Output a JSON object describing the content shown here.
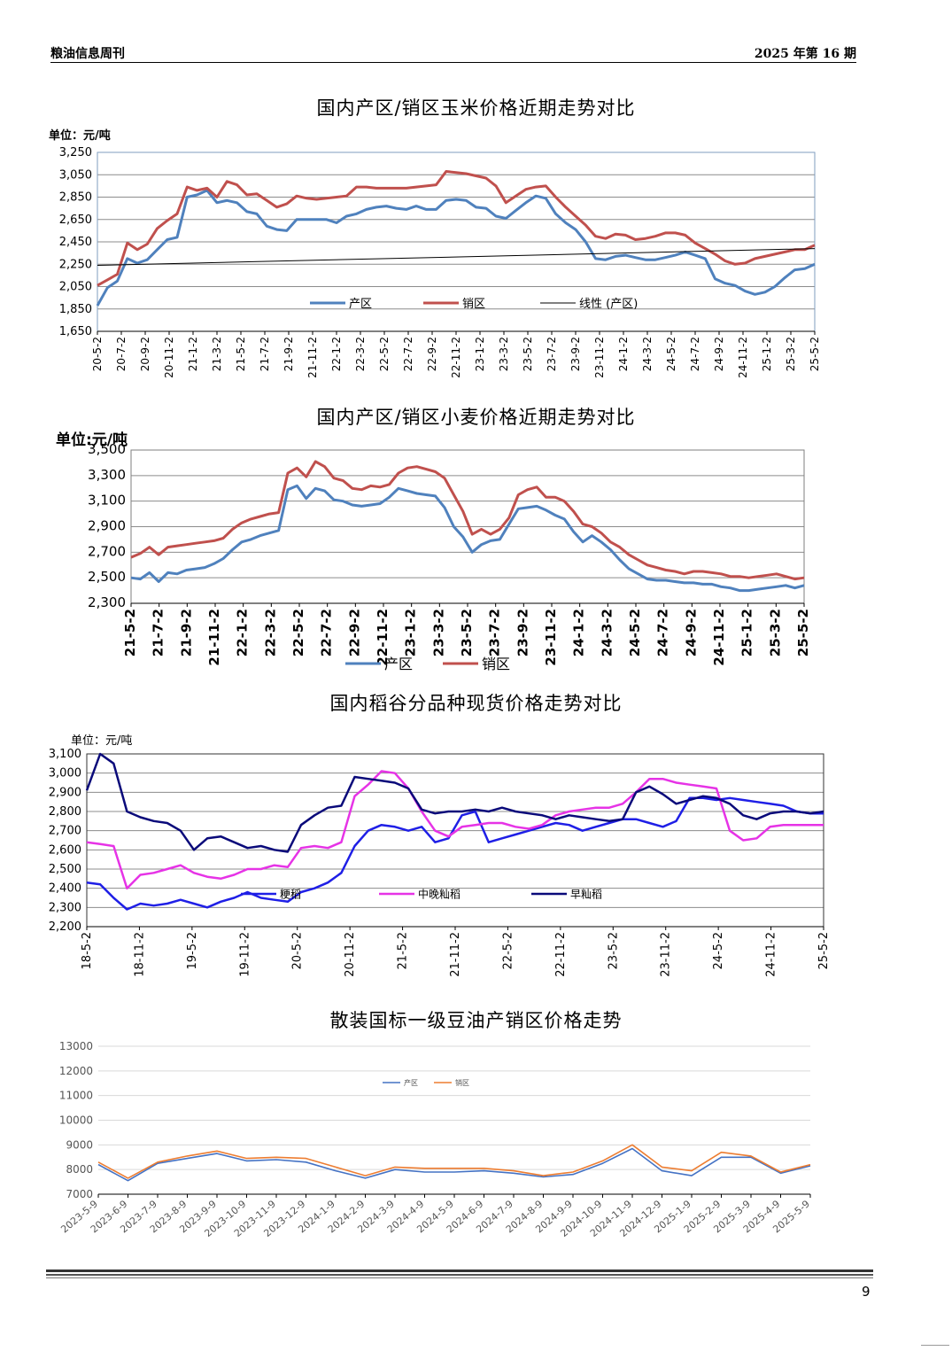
{
  "header": {
    "left": "粮油信息周刊",
    "right": "2025 年第 16 期"
  },
  "page_number": "9",
  "chart_data": [
    {
      "type": "line",
      "title": "国内产区/销区玉米价格近期走势对比",
      "unit_label": "单位：元/吨",
      "y_ticks": [
        "1,650",
        "1,850",
        "2,050",
        "2,250",
        "2,450",
        "2,650",
        "2,850",
        "3,050",
        "3,250"
      ],
      "ylim": [
        1650,
        3250
      ],
      "x_labels": [
        "20-5-2",
        "20-7-2",
        "20-9-2",
        "20-11-2",
        "21-1-2",
        "21-3-2",
        "21-5-2",
        "21-7-2",
        "21-9-2",
        "21-11-2",
        "22-1-2",
        "22-3-2",
        "22-5-2",
        "22-7-2",
        "22-9-2",
        "22-11-2",
        "23-1-2",
        "23-3-2",
        "23-5-2",
        "23-7-2",
        "23-9-2",
        "23-11-2",
        "24-1-2",
        "24-3-2",
        "24-5-2",
        "24-7-2",
        "24-9-2",
        "24-11-2",
        "25-1-2",
        "25-3-2",
        "25-5-2"
      ],
      "grid": true,
      "legend_position": "bottom-inside",
      "series": [
        {
          "name": "产区",
          "color": "#4f81bd",
          "values": [
            1880,
            2040,
            2100,
            2300,
            2260,
            2290,
            2380,
            2470,
            2490,
            2850,
            2870,
            2910,
            2800,
            2820,
            2800,
            2720,
            2700,
            2590,
            2560,
            2550,
            2650,
            2650,
            2650,
            2650,
            2620,
            2680,
            2700,
            2740,
            2760,
            2770,
            2750,
            2740,
            2770,
            2740,
            2740,
            2820,
            2830,
            2820,
            2760,
            2750,
            2680,
            2660,
            2730,
            2800,
            2860,
            2840,
            2700,
            2620,
            2560,
            2450,
            2300,
            2290,
            2320,
            2330,
            2310,
            2290,
            2290,
            2310,
            2330,
            2360,
            2330,
            2300,
            2120,
            2080,
            2060,
            2010,
            1980,
            2000,
            2050,
            2130,
            2200,
            2210,
            2250
          ]
        },
        {
          "name": "销区",
          "color": "#c0504d",
          "values": [
            2060,
            2110,
            2160,
            2440,
            2380,
            2430,
            2570,
            2640,
            2700,
            2940,
            2910,
            2930,
            2850,
            2990,
            2960,
            2870,
            2880,
            2820,
            2760,
            2790,
            2860,
            2840,
            2830,
            2840,
            2850,
            2860,
            2940,
            2940,
            2930,
            2930,
            2930,
            2930,
            2940,
            2950,
            2960,
            3080,
            3070,
            3060,
            3040,
            3020,
            2950,
            2800,
            2860,
            2920,
            2940,
            2950,
            2850,
            2760,
            2680,
            2600,
            2500,
            2480,
            2520,
            2510,
            2470,
            2480,
            2500,
            2530,
            2530,
            2510,
            2440,
            2390,
            2340,
            2280,
            2250,
            2260,
            2300,
            2320,
            2340,
            2360,
            2380,
            2380,
            2420
          ]
        },
        {
          "name": "线性 (产区)",
          "color": "#000000",
          "values": [
            2240,
            2390
          ]
        }
      ]
    },
    {
      "type": "line",
      "title": "国内产区/销区小麦价格近期走势对比",
      "unit_label": "单位:元/吨",
      "y_ticks": [
        "2,300",
        "2,500",
        "2,700",
        "2,900",
        "3,100",
        "3,300",
        "3,500"
      ],
      "ylim": [
        2300,
        3500
      ],
      "x_labels": [
        "21-5-2",
        "21-7-2",
        "21-9-2",
        "21-11-2",
        "22-1-2",
        "22-3-2",
        "22-5-2",
        "22-7-2",
        "22-9-2",
        "22-11-2",
        "23-1-2",
        "23-3-2",
        "23-5-2",
        "23-7-2",
        "23-9-2",
        "23-11-2",
        "24-1-2",
        "24-3-2",
        "24-5-2",
        "24-7-2",
        "24-9-2",
        "24-11-2",
        "25-1-2",
        "25-3-2",
        "25-5-2"
      ],
      "grid": true,
      "legend_position": "bottom",
      "series": [
        {
          "name": "产区",
          "color": "#4f81bd",
          "values": [
            2500,
            2490,
            2540,
            2470,
            2540,
            2530,
            2560,
            2570,
            2580,
            2610,
            2650,
            2720,
            2780,
            2800,
            2830,
            2850,
            2870,
            3190,
            3220,
            3120,
            3200,
            3180,
            3110,
            3100,
            3070,
            3060,
            3070,
            3080,
            3130,
            3200,
            3180,
            3160,
            3150,
            3140,
            3050,
            2900,
            2820,
            2700,
            2760,
            2790,
            2800,
            2920,
            3040,
            3050,
            3060,
            3030,
            2990,
            2960,
            2860,
            2780,
            2830,
            2780,
            2720,
            2640,
            2570,
            2530,
            2490,
            2480,
            2480,
            2470,
            2460,
            2460,
            2450,
            2450,
            2430,
            2420,
            2400,
            2400,
            2410,
            2420,
            2430,
            2440,
            2420,
            2440
          ]
        },
        {
          "name": "销区",
          "color": "#c0504d",
          "values": [
            2660,
            2690,
            2740,
            2680,
            2740,
            2750,
            2760,
            2770,
            2780,
            2790,
            2810,
            2880,
            2930,
            2960,
            2980,
            3000,
            3010,
            3320,
            3360,
            3290,
            3410,
            3370,
            3280,
            3260,
            3200,
            3190,
            3220,
            3210,
            3230,
            3320,
            3360,
            3370,
            3350,
            3330,
            3280,
            3150,
            3020,
            2840,
            2880,
            2840,
            2880,
            2970,
            3150,
            3190,
            3210,
            3130,
            3130,
            3100,
            3020,
            2920,
            2900,
            2850,
            2780,
            2740,
            2680,
            2640,
            2600,
            2580,
            2560,
            2550,
            2530,
            2550,
            2550,
            2540,
            2530,
            2510,
            2510,
            2500,
            2510,
            2520,
            2530,
            2510,
            2490,
            2500
          ]
        }
      ]
    },
    {
      "type": "line",
      "title": "国内稻谷分品种现货价格走势对比",
      "unit_label": "单位：元/吨",
      "y_ticks": [
        "2,200",
        "2,300",
        "2,400",
        "2,500",
        "2,600",
        "2,700",
        "2,800",
        "2,900",
        "3,000",
        "3,100"
      ],
      "ylim": [
        2200,
        3100
      ],
      "x_labels": [
        "18-5-2",
        "18-11-2",
        "19-5-2",
        "19-11-2",
        "20-5-2",
        "20-11-2",
        "21-5-2",
        "21-11-2",
        "22-5-2",
        "22-11-2",
        "23-5-2",
        "23-11-2",
        "24-5-2",
        "24-11-2",
        "25-5-2"
      ],
      "grid": true,
      "legend_position": "bottom-inside",
      "series": [
        {
          "name": "粳稻",
          "color": "#1f1fe6",
          "values": [
            2430,
            2420,
            2350,
            2290,
            2320,
            2310,
            2320,
            2340,
            2320,
            2300,
            2330,
            2350,
            2380,
            2350,
            2340,
            2330,
            2380,
            2400,
            2430,
            2480,
            2620,
            2700,
            2730,
            2720,
            2700,
            2720,
            2640,
            2660,
            2780,
            2800,
            2640,
            2660,
            2680,
            2700,
            2720,
            2740,
            2730,
            2700,
            2720,
            2740,
            2760,
            2760,
            2740,
            2720,
            2750,
            2870,
            2870,
            2860,
            2870,
            2860,
            2850,
            2840,
            2830,
            2800,
            2790,
            2790
          ]
        },
        {
          "name": "中晚籼稻",
          "color": "#e633e6",
          "values": [
            2640,
            2630,
            2620,
            2400,
            2470,
            2480,
            2500,
            2520,
            2480,
            2460,
            2450,
            2470,
            2500,
            2500,
            2520,
            2510,
            2610,
            2620,
            2610,
            2640,
            2880,
            2940,
            3010,
            3000,
            2920,
            2800,
            2700,
            2670,
            2720,
            2730,
            2740,
            2740,
            2720,
            2710,
            2730,
            2780,
            2800,
            2810,
            2820,
            2820,
            2840,
            2900,
            2970,
            2970,
            2950,
            2940,
            2930,
            2920,
            2700,
            2650,
            2660,
            2720,
            2730,
            2730,
            2730,
            2730
          ]
        },
        {
          "name": "早籼稻",
          "color": "#0a0a7a",
          "values": [
            2910,
            3100,
            3050,
            2800,
            2770,
            2750,
            2740,
            2700,
            2600,
            2660,
            2670,
            2640,
            2610,
            2620,
            2600,
            2590,
            2730,
            2780,
            2820,
            2830,
            2980,
            2970,
            2960,
            2950,
            2920,
            2810,
            2790,
            2800,
            2800,
            2810,
            2800,
            2820,
            2800,
            2790,
            2780,
            2760,
            2780,
            2770,
            2760,
            2750,
            2760,
            2900,
            2930,
            2890,
            2840,
            2860,
            2880,
            2870,
            2840,
            2780,
            2760,
            2790,
            2800,
            2800,
            2790,
            2800
          ]
        }
      ]
    },
    {
      "type": "line",
      "title": "散装国标一级豆油产销区价格走势",
      "unit_label": "",
      "y_ticks": [
        "7000",
        "8000",
        "9000",
        "10000",
        "11000",
        "12000",
        "13000"
      ],
      "ylim": [
        7000,
        13000
      ],
      "x_labels": [
        "2023-5-9",
        "2023-6-9",
        "2023-7-9",
        "2023-8-9",
        "2023-9-9",
        "2023-10-9",
        "2023-11-9",
        "2023-12-9",
        "2024-1-9",
        "2024-2-9",
        "2024-3-9",
        "2024-4-9",
        "2024-5-9",
        "2024-6-9",
        "2024-7-9",
        "2024-8-9",
        "2024-9-9",
        "2024-10-9",
        "2024-11-9",
        "2024-12-9",
        "2025-1-9",
        "2025-2-9",
        "2025-3-9",
        "2025-4-9",
        "2025-5-9"
      ],
      "grid": true,
      "legend_position": "top-inside",
      "series": [
        {
          "name": "产区",
          "color": "#4472c4",
          "values": [
            8200,
            7550,
            8250,
            8450,
            8650,
            8350,
            8400,
            8300,
            7950,
            7650,
            8000,
            7900,
            7900,
            7950,
            7850,
            7700,
            7800,
            8250,
            8850,
            7950,
            7750,
            8500,
            8500,
            7850,
            8150
          ]
        },
        {
          "name": "销区",
          "color": "#ed7d31",
          "values": [
            8300,
            7650,
            8300,
            8550,
            8750,
            8450,
            8500,
            8450,
            8100,
            7750,
            8100,
            8050,
            8050,
            8050,
            7950,
            7750,
            7900,
            8350,
            9000,
            8100,
            7950,
            8700,
            8550,
            7900,
            8200
          ]
        }
      ]
    }
  ]
}
